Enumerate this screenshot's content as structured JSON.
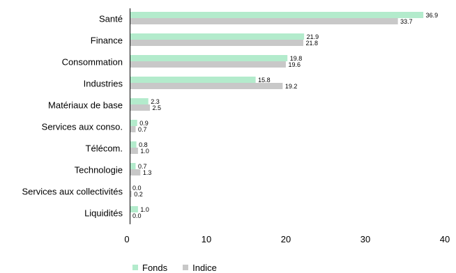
{
  "chart_data": {
    "type": "bar",
    "orientation": "horizontal",
    "categories": [
      "Santé",
      "Finance",
      "Consommation",
      "Industries",
      "Matériaux de base",
      "Services aux conso.",
      "Télécom.",
      "Technologie",
      "Services aux collectivités",
      "Liquidités"
    ],
    "series": [
      {
        "name": "Fonds",
        "values": [
          36.9,
          21.9,
          19.8,
          15.8,
          2.3,
          0.9,
          0.8,
          0.7,
          0.0,
          1.0
        ]
      },
      {
        "name": "Indice",
        "values": [
          33.7,
          21.8,
          19.6,
          19.2,
          2.5,
          0.7,
          1.0,
          1.3,
          0.2,
          0.0
        ]
      }
    ],
    "value_labels": [
      [
        "36.9",
        "21.9",
        "19.8",
        "15.8",
        "2.3",
        "0.9",
        "0.8",
        "0.7",
        "0.0",
        "1.0"
      ],
      [
        "33.7",
        "21.8",
        "19.6",
        "19.2",
        "2.5",
        "0.7",
        "1.0",
        "1.3",
        "0.2",
        "0.0"
      ]
    ],
    "xlim": [
      0,
      40
    ],
    "xticks": [
      0,
      10,
      20,
      30,
      40
    ],
    "xtick_labels": [
      "0",
      "10",
      "20",
      "30",
      "40"
    ],
    "grid": false,
    "legend_position": "bottom",
    "colors": {
      "Fonds": "#b3ebcc",
      "Indice": "#c8c8c8"
    }
  },
  "legend": {
    "items": [
      {
        "label": "Fonds",
        "color": "#b3ebcc"
      },
      {
        "label": "Indice",
        "color": "#c8c8c8"
      }
    ]
  }
}
